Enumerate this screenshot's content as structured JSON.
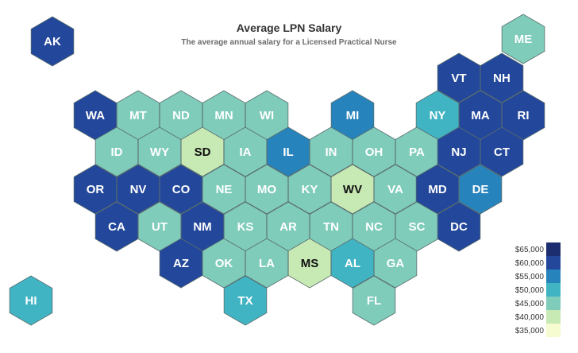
{
  "title": "Average LPN Salary",
  "subtitle": "The average annual salary for a Licensed Practical Nurse",
  "colors": {
    "b65": "#1c2d70",
    "b60": "#23479a",
    "b55": "#2783bb",
    "b50": "#41b4c4",
    "b45": "#7fccbb",
    "b40": "#c7e9b4",
    "b35": "#f6fbd0",
    "stroke": "#5a6e6e",
    "text_dark_bg": "#ffffff",
    "text_light_bg": "#111111"
  },
  "legend": [
    {
      "label": "$65,000",
      "band": "b65"
    },
    {
      "label": "$60,000",
      "band": "b60"
    },
    {
      "label": "$55,000",
      "band": "b55"
    },
    {
      "label": "$50,000",
      "band": "b50"
    },
    {
      "label": "$45,000",
      "band": "b45"
    },
    {
      "label": "$40,000",
      "band": "b40"
    },
    {
      "label": "$35,000",
      "band": "b35"
    }
  ],
  "states": [
    {
      "abbr": "AK",
      "band": "b60"
    },
    {
      "abbr": "ME",
      "band": "b45"
    },
    {
      "abbr": "VT",
      "band": "b60"
    },
    {
      "abbr": "NH",
      "band": "b60"
    },
    {
      "abbr": "WA",
      "band": "b60"
    },
    {
      "abbr": "MT",
      "band": "b45"
    },
    {
      "abbr": "ND",
      "band": "b45"
    },
    {
      "abbr": "MN",
      "band": "b45"
    },
    {
      "abbr": "WI",
      "band": "b45"
    },
    {
      "abbr": "MI",
      "band": "b55"
    },
    {
      "abbr": "NY",
      "band": "b50"
    },
    {
      "abbr": "MA",
      "band": "b60"
    },
    {
      "abbr": "RI",
      "band": "b60"
    },
    {
      "abbr": "ID",
      "band": "b45"
    },
    {
      "abbr": "WY",
      "band": "b45"
    },
    {
      "abbr": "SD",
      "band": "b40"
    },
    {
      "abbr": "IA",
      "band": "b45"
    },
    {
      "abbr": "IL",
      "band": "b55"
    },
    {
      "abbr": "IN",
      "band": "b45"
    },
    {
      "abbr": "OH",
      "band": "b45"
    },
    {
      "abbr": "PA",
      "band": "b45"
    },
    {
      "abbr": "NJ",
      "band": "b60"
    },
    {
      "abbr": "CT",
      "band": "b60"
    },
    {
      "abbr": "OR",
      "band": "b60"
    },
    {
      "abbr": "NV",
      "band": "b60"
    },
    {
      "abbr": "CO",
      "band": "b60"
    },
    {
      "abbr": "NE",
      "band": "b45"
    },
    {
      "abbr": "MO",
      "band": "b45"
    },
    {
      "abbr": "KY",
      "band": "b45"
    },
    {
      "abbr": "WV",
      "band": "b40"
    },
    {
      "abbr": "VA",
      "band": "b45"
    },
    {
      "abbr": "MD",
      "band": "b60"
    },
    {
      "abbr": "DE",
      "band": "b55"
    },
    {
      "abbr": "CA",
      "band": "b60"
    },
    {
      "abbr": "UT",
      "band": "b45"
    },
    {
      "abbr": "NM",
      "band": "b60"
    },
    {
      "abbr": "KS",
      "band": "b45"
    },
    {
      "abbr": "AR",
      "band": "b45"
    },
    {
      "abbr": "TN",
      "band": "b45"
    },
    {
      "abbr": "NC",
      "band": "b45"
    },
    {
      "abbr": "SC",
      "band": "b45"
    },
    {
      "abbr": "DC",
      "band": "b60"
    },
    {
      "abbr": "AZ",
      "band": "b60"
    },
    {
      "abbr": "OK",
      "band": "b45"
    },
    {
      "abbr": "LA",
      "band": "b45"
    },
    {
      "abbr": "MS",
      "band": "b40"
    },
    {
      "abbr": "AL",
      "band": "b50"
    },
    {
      "abbr": "GA",
      "band": "b45"
    },
    {
      "abbr": "HI",
      "band": "b50"
    },
    {
      "abbr": "TX",
      "band": "b50"
    },
    {
      "abbr": "FL",
      "band": "b45"
    }
  ]
}
